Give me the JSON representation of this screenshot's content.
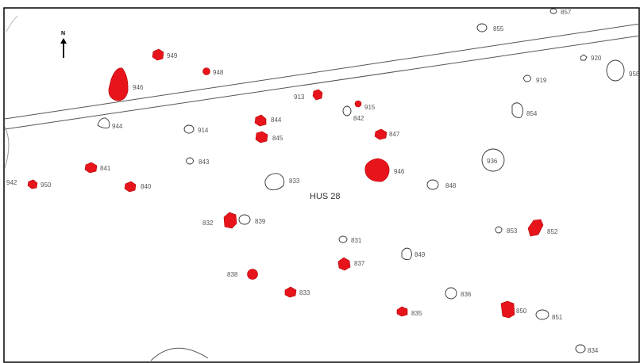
{
  "map": {
    "title": "HUS 28",
    "north_label": "N",
    "colors": {
      "filled": "#e8141c",
      "outline": "#333333",
      "road": "#555555"
    },
    "features": [
      {
        "id": "f949",
        "label": "949",
        "filled": true
      },
      {
        "id": "f946a",
        "label": "946",
        "filled": true
      },
      {
        "id": "f948",
        "label": "948",
        "filled": true
      },
      {
        "id": "f913",
        "label": "913",
        "filled": true
      },
      {
        "id": "f915",
        "label": "915",
        "filled": true
      },
      {
        "id": "f844",
        "label": "844",
        "filled": true
      },
      {
        "id": "f845",
        "label": "845",
        "filled": true
      },
      {
        "id": "f847",
        "label": "847",
        "filled": true
      },
      {
        "id": "f946b",
        "label": "946",
        "filled": true
      },
      {
        "id": "f841",
        "label": "841",
        "filled": true
      },
      {
        "id": "f950a",
        "label": "950",
        "filled": true
      },
      {
        "id": "f840",
        "label": "840",
        "filled": true
      },
      {
        "id": "f832",
        "label": "832",
        "filled": true
      },
      {
        "id": "f852",
        "label": "852",
        "filled": true
      },
      {
        "id": "f837",
        "label": "837",
        "filled": true
      },
      {
        "id": "f838",
        "label": "838",
        "filled": true
      },
      {
        "id": "f833r",
        "label": "833",
        "filled": true
      },
      {
        "id": "f835",
        "label": "835",
        "filled": true
      },
      {
        "id": "f850",
        "label": "850",
        "filled": true
      },
      {
        "id": "f857",
        "label": "857",
        "filled": false
      },
      {
        "id": "f855",
        "label": "855",
        "filled": false
      },
      {
        "id": "f920",
        "label": "920",
        "filled": false
      },
      {
        "id": "f958",
        "label": "958",
        "filled": false
      },
      {
        "id": "f919",
        "label": "919",
        "filled": false
      },
      {
        "id": "f854",
        "label": "854",
        "filled": false
      },
      {
        "id": "f944",
        "label": "944",
        "filled": false
      },
      {
        "id": "f842",
        "label": "842",
        "filled": false
      },
      {
        "id": "f914",
        "label": "914",
        "filled": false
      },
      {
        "id": "f843",
        "label": "843",
        "filled": false
      },
      {
        "id": "f936",
        "label": "936",
        "filled": false
      },
      {
        "id": "f833o",
        "label": "833",
        "filled": false
      },
      {
        "id": "f848",
        "label": "848",
        "filled": false
      },
      {
        "id": "f839",
        "label": "839",
        "filled": false
      },
      {
        "id": "f853",
        "label": "853",
        "filled": false
      },
      {
        "id": "f831",
        "label": "831",
        "filled": false
      },
      {
        "id": "f849",
        "label": "849",
        "filled": false
      },
      {
        "id": "f836",
        "label": "836",
        "filled": false
      },
      {
        "id": "f851",
        "label": "851",
        "filled": false
      },
      {
        "id": "f834",
        "label": "834",
        "filled": false
      },
      {
        "id": "f942",
        "label": "942",
        "filled": false
      }
    ]
  }
}
